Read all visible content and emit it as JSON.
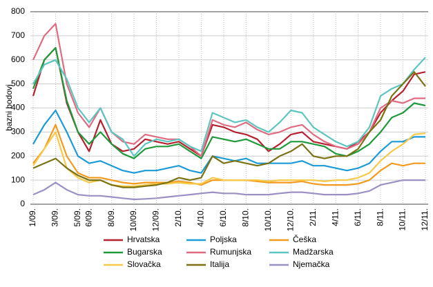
{
  "chart_data": {
    "type": "line",
    "y_label": "bazni bodovi",
    "categories": [
      "1/09.",
      null,
      "3/09.",
      null,
      "5/09.",
      "6/09.",
      null,
      "8/09.",
      null,
      "10/09.",
      null,
      "12/09.",
      null,
      "2/10.",
      null,
      "4/10.",
      null,
      "6/10.",
      null,
      "8/10.",
      null,
      "10/10.",
      null,
      "12/10.",
      null,
      "2/11.",
      null,
      "4/11.",
      null,
      "6/11.",
      null,
      "8/11.",
      null,
      "10/11.",
      null,
      "12/11."
    ],
    "ylim": [
      0,
      800
    ],
    "yticks": [
      0,
      100,
      200,
      300,
      400,
      500,
      600,
      700,
      800
    ],
    "grid": true,
    "series": [
      {
        "name": "Hrvatska",
        "color": "#b5202e",
        "values": [
          450,
          600,
          650,
          420,
          300,
          220,
          350,
          250,
          220,
          230,
          270,
          260,
          250,
          260,
          230,
          200,
          330,
          320,
          300,
          290,
          270,
          220,
          250,
          290,
          300,
          260,
          250,
          240,
          230,
          260,
          300,
          380,
          430,
          470,
          540,
          550
        ]
      },
      {
        "name": "Poljska",
        "color": "#1a9ad6",
        "values": [
          250,
          330,
          390,
          300,
          200,
          170,
          180,
          160,
          140,
          130,
          140,
          140,
          150,
          160,
          140,
          130,
          200,
          190,
          180,
          190,
          170,
          170,
          170,
          170,
          180,
          160,
          160,
          150,
          140,
          150,
          170,
          220,
          260,
          260,
          280,
          280
        ]
      },
      {
        "name": "Češka",
        "color": "#f39a1e",
        "values": [
          170,
          230,
          330,
          200,
          130,
          110,
          110,
          100,
          90,
          85,
          90,
          90,
          90,
          95,
          90,
          80,
          100,
          100,
          100,
          100,
          95,
          90,
          90,
          90,
          95,
          85,
          80,
          80,
          80,
          85,
          100,
          140,
          170,
          160,
          170,
          170
        ]
      },
      {
        "name": "Bugarska",
        "color": "#1e9a3a",
        "values": [
          480,
          600,
          650,
          430,
          300,
          250,
          300,
          250,
          210,
          190,
          230,
          240,
          240,
          250,
          220,
          190,
          280,
          270,
          260,
          270,
          250,
          230,
          230,
          260,
          260,
          250,
          240,
          210,
          200,
          220,
          250,
          300,
          360,
          380,
          420,
          410
        ]
      },
      {
        "name": "Rumunjska",
        "color": "#e06b80",
        "values": [
          600,
          700,
          750,
          500,
          380,
          320,
          400,
          300,
          260,
          250,
          290,
          280,
          270,
          270,
          240,
          200,
          350,
          330,
          320,
          340,
          310,
          290,
          300,
          320,
          330,
          290,
          260,
          240,
          230,
          250,
          300,
          400,
          430,
          420,
          440,
          440
        ]
      },
      {
        "name": "Madžarska",
        "color": "#5cc5c0",
        "values": [
          500,
          580,
          600,
          520,
          400,
          340,
          400,
          300,
          270,
          200,
          250,
          270,
          260,
          270,
          240,
          220,
          380,
          360,
          340,
          350,
          320,
          300,
          340,
          390,
          380,
          320,
          290,
          260,
          240,
          260,
          320,
          450,
          480,
          500,
          560,
          610
        ]
      },
      {
        "name": "Slovačka",
        "color": "#f7c948",
        "values": [
          160,
          230,
          300,
          150,
          110,
          90,
          100,
          80,
          75,
          75,
          80,
          85,
          85,
          90,
          85,
          85,
          110,
          100,
          100,
          100,
          100,
          95,
          100,
          100,
          100,
          100,
          95,
          100,
          100,
          110,
          130,
          180,
          220,
          250,
          290,
          295
        ]
      },
      {
        "name": "Italija",
        "color": "#7a7212",
        "values": [
          150,
          170,
          190,
          150,
          120,
          100,
          100,
          80,
          70,
          70,
          75,
          80,
          90,
          110,
          100,
          110,
          200,
          170,
          180,
          170,
          160,
          170,
          200,
          220,
          250,
          200,
          190,
          200,
          200,
          230,
          300,
          350,
          450,
          500,
          550,
          490
        ]
      },
      {
        "name": "Njemačka",
        "color": "#9b8fc4",
        "values": [
          40,
          60,
          90,
          60,
          40,
          35,
          35,
          30,
          25,
          20,
          22,
          25,
          30,
          35,
          40,
          45,
          50,
          45,
          45,
          40,
          40,
          40,
          45,
          50,
          50,
          45,
          40,
          40,
          40,
          45,
          55,
          80,
          90,
          100,
          100,
          100
        ]
      }
    ]
  }
}
